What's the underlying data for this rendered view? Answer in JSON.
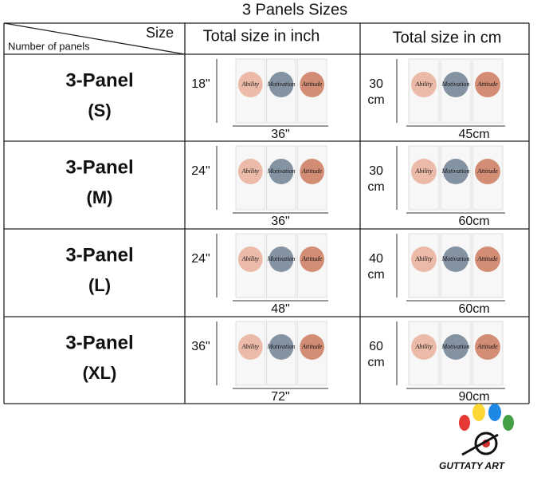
{
  "title": "3 Panels Sizes",
  "header": {
    "size": "Size",
    "number_of_panels": "Number of panels",
    "inch": "Total size in inch",
    "cm": "Total size in cm"
  },
  "panel_words": [
    "Ability",
    "Motivation",
    "Attitude"
  ],
  "rows": [
    {
      "name": "3-Panel",
      "size": "(S)",
      "inch_height": "18\"",
      "inch_width": "36\"",
      "cm_height": "30",
      "cm_unit": "cm",
      "cm_width": "45cm"
    },
    {
      "name": "3-Panel",
      "size": "(M)",
      "inch_height": "24\"",
      "inch_width": "36\"",
      "cm_height": "30",
      "cm_unit": "cm",
      "cm_width": "60cm"
    },
    {
      "name": "3-Panel",
      "size": "(L)",
      "inch_height": "24\"",
      "inch_width": "48\"",
      "cm_height": "40",
      "cm_unit": "cm",
      "cm_width": "60cm"
    },
    {
      "name": "3-Panel",
      "size": "(XL)",
      "inch_height": "36\"",
      "inch_width": "72\"",
      "cm_height": "60",
      "cm_unit": "cm",
      "cm_width": "90cm"
    }
  ],
  "logo": "GUTTATY ART"
}
